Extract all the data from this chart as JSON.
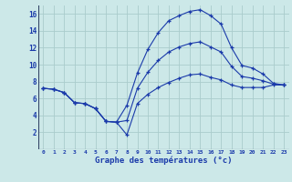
{
  "xlabel": "Graphe des températures (°c)",
  "bg_color": "#cce8e8",
  "grid_color": "#aacccc",
  "line_color": "#1a3aaa",
  "xlim": [
    -0.5,
    23.5
  ],
  "ylim": [
    0,
    17
  ],
  "yticks": [
    2,
    4,
    6,
    8,
    10,
    12,
    14,
    16
  ],
  "xticks": [
    0,
    1,
    2,
    3,
    4,
    5,
    6,
    7,
    8,
    9,
    10,
    11,
    12,
    13,
    14,
    15,
    16,
    17,
    18,
    19,
    20,
    21,
    22,
    23
  ],
  "hours": [
    0,
    1,
    2,
    3,
    4,
    5,
    6,
    7,
    8,
    9,
    10,
    11,
    12,
    13,
    14,
    15,
    16,
    17,
    18,
    19,
    20,
    21,
    22,
    23
  ],
  "t_max": [
    7.2,
    7.1,
    6.7,
    5.5,
    5.4,
    4.8,
    3.3,
    3.2,
    5.2,
    9.0,
    11.8,
    13.8,
    15.2,
    15.8,
    16.3,
    16.5,
    15.8,
    14.8,
    12.0,
    9.9,
    9.6,
    8.9,
    7.8,
    7.6
  ],
  "t_min": [
    7.2,
    7.1,
    6.7,
    5.5,
    5.4,
    4.8,
    3.3,
    3.2,
    1.7,
    5.4,
    6.5,
    7.3,
    7.9,
    8.4,
    8.8,
    8.9,
    8.5,
    8.2,
    7.6,
    7.3,
    7.3,
    7.3,
    7.6,
    7.6
  ],
  "t_avg": [
    7.2,
    7.1,
    6.7,
    5.5,
    5.4,
    4.8,
    3.3,
    3.2,
    3.4,
    7.2,
    9.1,
    10.5,
    11.5,
    12.1,
    12.5,
    12.7,
    12.1,
    11.5,
    9.8,
    8.6,
    8.4,
    8.1,
    7.7,
    7.6
  ]
}
